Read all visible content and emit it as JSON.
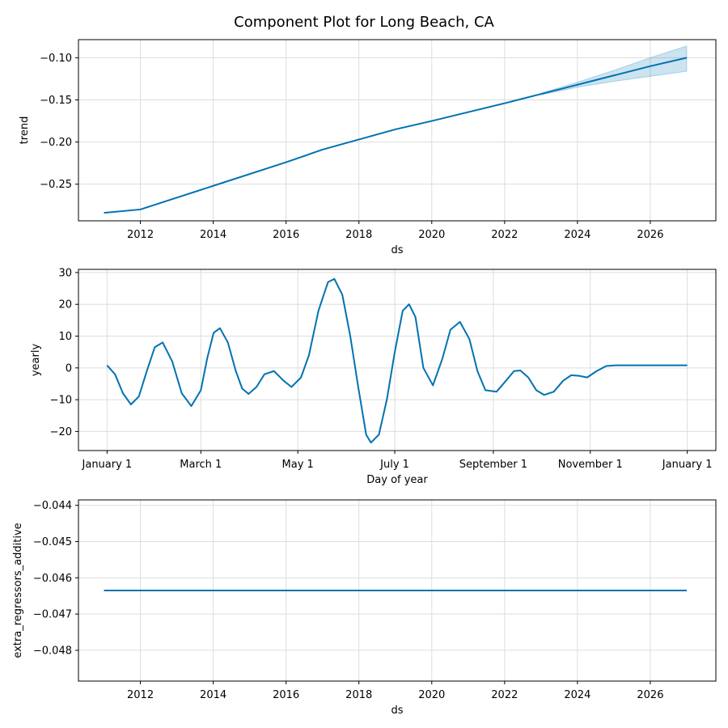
{
  "figure": {
    "title": "Component Plot for Long Beach, CA",
    "line_color": "#0072B2",
    "band_color": "#0072B2"
  },
  "chart_data": [
    {
      "type": "line",
      "ylabel": "trend",
      "xlabel": "ds",
      "xlim": [
        2010.3,
        2027.8
      ],
      "ylim": [
        -0.2935,
        -0.0785
      ],
      "xticks": [
        2012,
        2014,
        2016,
        2018,
        2020,
        2022,
        2024,
        2026
      ],
      "xtick_labels": [
        "2012",
        "2014",
        "2016",
        "2018",
        "2020",
        "2022",
        "2024",
        "2026"
      ],
      "yticks": [
        -0.25,
        -0.2,
        -0.15,
        -0.1
      ],
      "ytick_labels": [
        "−0.25",
        "−0.20",
        "−0.15",
        "−0.10"
      ],
      "grid": true,
      "series": [
        {
          "x": [
            2011.0,
            2012.0,
            2014.0,
            2016.0,
            2017.0,
            2018.0,
            2019.0,
            2020.0,
            2022.0,
            2023.0,
            2024.0,
            2025.0,
            2026.0,
            2027.0
          ],
          "y": [
            -0.284,
            -0.28,
            -0.252,
            -0.224,
            -0.209,
            -0.197,
            -0.185,
            -0.175,
            -0.154,
            -0.143,
            -0.132,
            -0.121,
            -0.11,
            -0.1
          ]
        }
      ],
      "uncertainty": {
        "x": [
          2023.0,
          2024.0,
          2025.0,
          2026.0,
          2027.0
        ],
        "lower": [
          -0.144,
          -0.135,
          -0.128,
          -0.122,
          -0.116
        ],
        "upper": [
          -0.142,
          -0.129,
          -0.115,
          -0.1,
          -0.086
        ]
      }
    },
    {
      "type": "line",
      "ylabel": "yearly",
      "xlabel": "Day of year",
      "xlim": [
        -18,
        383
      ],
      "ylim": [
        -26,
        31
      ],
      "xticks": [
        0,
        59,
        120,
        181,
        243,
        304,
        365
      ],
      "xtick_labels": [
        "January 1",
        "March 1",
        "May 1",
        "July 1",
        "September 1",
        "November 1",
        "January 1"
      ],
      "yticks": [
        -20,
        -10,
        0,
        10,
        20,
        30
      ],
      "ytick_labels": [
        "−20",
        "−10",
        "0",
        "10",
        "20",
        "30"
      ],
      "grid": true,
      "series": [
        {
          "x": [
            0,
            5,
            10,
            15,
            20,
            25,
            30,
            35,
            41,
            47,
            53,
            59,
            63,
            67,
            71,
            76,
            81,
            85,
            89,
            94,
            99,
            105,
            111,
            116,
            122,
            127,
            133,
            139,
            143,
            148,
            153,
            158,
            163,
            166,
            171,
            176,
            181,
            186,
            190,
            194,
            199,
            205,
            211,
            216,
            222,
            228,
            233,
            238,
            245,
            251,
            256,
            260,
            265,
            270,
            275,
            281,
            287,
            292,
            297,
            302,
            308,
            314,
            320,
            326,
            332,
            338,
            344,
            350,
            356,
            361,
            365
          ],
          "y": [
            0.8,
            -2,
            -8,
            -11.5,
            -9,
            -1,
            6.5,
            8,
            2,
            -8,
            -12,
            -7,
            3,
            11,
            12.5,
            8,
            -1,
            -6.5,
            -8.2,
            -6,
            -2,
            -1,
            -4,
            -6,
            -3,
            4,
            18,
            27,
            28,
            23,
            10,
            -6,
            -21,
            -23.5,
            -21,
            -10,
            5,
            18,
            20,
            16,
            0,
            -5.5,
            3,
            12,
            14.5,
            9,
            -1,
            -7,
            -7.5,
            -4,
            -1,
            -0.8,
            -3,
            -7,
            -8.5,
            -7.5,
            -4,
            -2.3,
            -2.5,
            -3,
            -1,
            0.6,
            0.8,
            0.8,
            0.8,
            0.8,
            0.8,
            0.8,
            0.8,
            0.8,
            0.8
          ]
        }
      ]
    },
    {
      "type": "line",
      "ylabel": "extra_regressors_additive",
      "xlabel": "ds",
      "xlim": [
        2010.3,
        2027.8
      ],
      "ylim": [
        -0.04885,
        -0.04385
      ],
      "xticks": [
        2012,
        2014,
        2016,
        2018,
        2020,
        2022,
        2024,
        2026
      ],
      "xtick_labels": [
        "2012",
        "2014",
        "2016",
        "2018",
        "2020",
        "2022",
        "2024",
        "2026"
      ],
      "yticks": [
        -0.048,
        -0.047,
        -0.046,
        -0.045,
        -0.044
      ],
      "ytick_labels": [
        "−0.048",
        "−0.047",
        "−0.046",
        "−0.045",
        "−0.044"
      ],
      "grid": true,
      "series": [
        {
          "x": [
            2011.0,
            2027.0
          ],
          "y": [
            -0.04635,
            -0.04635
          ]
        }
      ]
    }
  ]
}
